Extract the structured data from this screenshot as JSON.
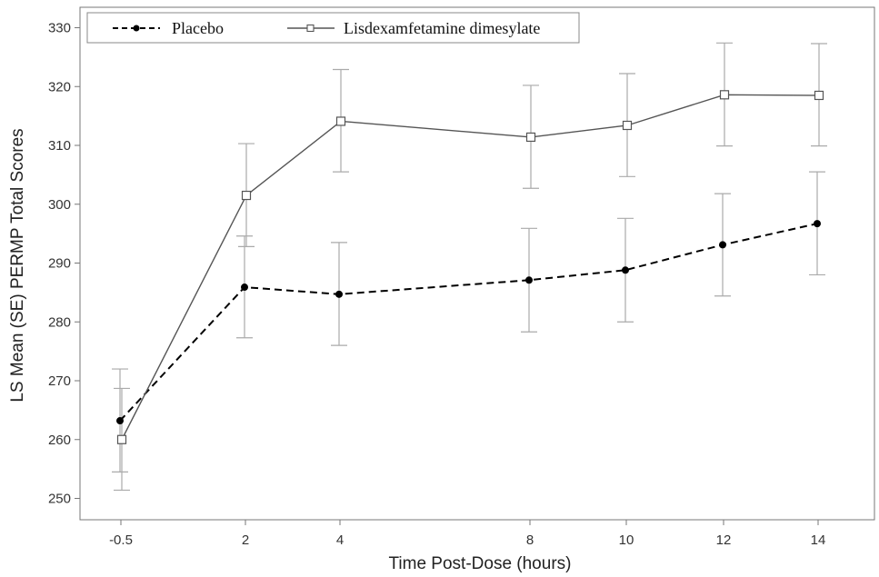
{
  "chart_data": {
    "type": "line",
    "xlabel": "Time Post-Dose (hours)",
    "ylabel": "LS Mean (SE) PERMP Total Scores",
    "x_tick_labels": [
      "-0.5",
      "2",
      "4",
      "8",
      "10",
      "12",
      "14"
    ],
    "x": [
      -0.5,
      2,
      4,
      8,
      10,
      12,
      14
    ],
    "ylim": [
      250,
      330
    ],
    "y_ticks": [
      250,
      260,
      270,
      280,
      290,
      300,
      310,
      320,
      330
    ],
    "grid": false,
    "legend_position": "top-left",
    "series": [
      {
        "name": "Placebo",
        "line_style": "dashed",
        "marker": "filled-circle",
        "color": "#000000",
        "values": [
          263.2,
          285.9,
          284.7,
          287.1,
          288.8,
          293.1,
          296.7
        ],
        "se_lower": [
          254.5,
          277.3,
          276.0,
          278.3,
          280.0,
          284.4,
          288.0
        ],
        "se_upper": [
          272.0,
          294.6,
          293.5,
          295.9,
          297.6,
          301.8,
          305.5
        ]
      },
      {
        "name": "Lisdexamfetamine dimesylate",
        "line_style": "solid",
        "marker": "open-square",
        "color": "#555555",
        "values": [
          260.0,
          301.5,
          314.1,
          311.4,
          313.4,
          318.6,
          318.5
        ],
        "se_lower": [
          251.4,
          292.8,
          305.5,
          302.7,
          304.7,
          309.9,
          309.9
        ],
        "se_upper": [
          268.7,
          310.3,
          322.9,
          320.2,
          322.2,
          327.4,
          327.3
        ]
      }
    ],
    "errorbar_color": "#aaaaaa"
  }
}
